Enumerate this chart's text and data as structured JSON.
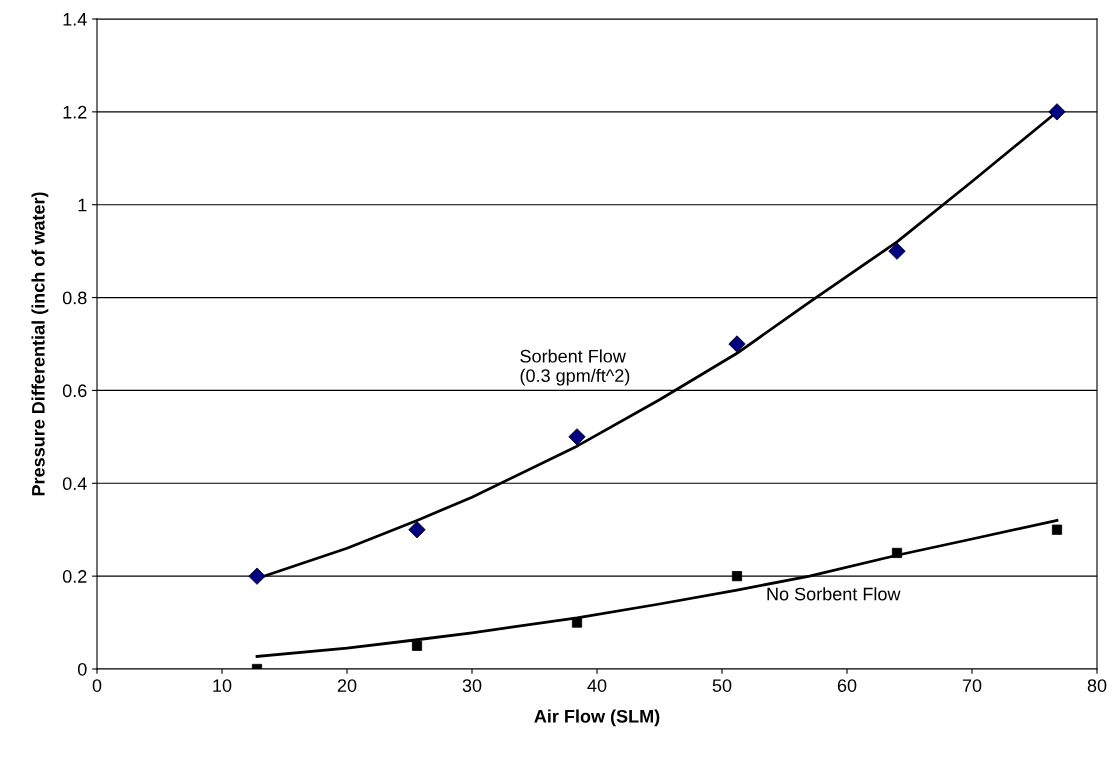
{
  "chart_data": {
    "type": "scatter",
    "xlabel": "Air Flow (SLM)",
    "ylabel": "Pressure Differential (inch of water)",
    "xlim": [
      0,
      80
    ],
    "xticks": [
      0,
      10,
      20,
      30,
      40,
      50,
      60,
      70,
      80
    ],
    "ylim": [
      0,
      1.4
    ],
    "yticks": [
      0,
      0.2,
      0.4,
      0.6,
      0.8,
      1,
      1.2,
      1.4
    ],
    "grid": "y",
    "legend": false,
    "series": [
      {
        "marker": "diamond",
        "color": "#000080",
        "x": [
          12.8,
          25.6,
          38.4,
          51.2,
          64,
          76.8
        ],
        "values": [
          0.2,
          0.3,
          0.5,
          0.7,
          0.9,
          1.2
        ]
      },
      {
        "marker": "square",
        "color": "#000000",
        "x": [
          12.8,
          25.6,
          38.4,
          51.2,
          64,
          76.8
        ],
        "values": [
          0,
          0.05,
          0.1,
          0.2,
          0.25,
          0.3
        ]
      },
      {
        "type": "line",
        "marker": "none",
        "color": "#000000",
        "x": [
          12.8,
          20,
          25.6,
          30,
          38.4,
          45,
          51.2,
          57,
          64,
          70,
          76.8
        ],
        "values": [
          0.195,
          0.26,
          0.32,
          0.37,
          0.48,
          0.58,
          0.68,
          0.79,
          0.92,
          1.05,
          1.2
        ]
      },
      {
        "type": "line",
        "marker": "none",
        "color": "#000000",
        "x": [
          12.8,
          20,
          25.6,
          30,
          38.4,
          45,
          51.2,
          57,
          64,
          70,
          76.8
        ],
        "values": [
          0.027,
          0.045,
          0.063,
          0.078,
          0.11,
          0.14,
          0.17,
          0.2,
          0.245,
          0.28,
          0.32
        ]
      }
    ],
    "annotations": [
      "Sorbent Flow\n(0.3 gpm/ft^2)",
      "No Sorbent Flow"
    ]
  }
}
